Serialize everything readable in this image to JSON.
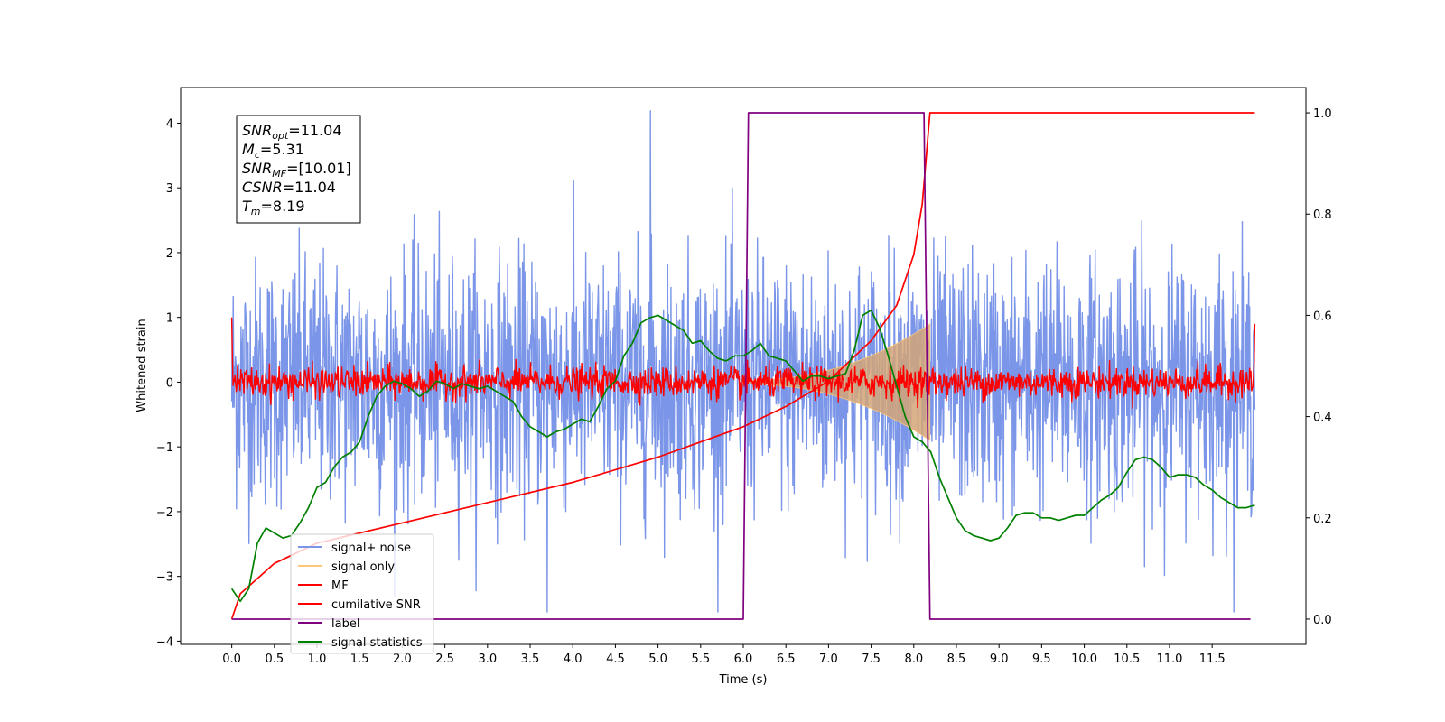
{
  "chart_data": {
    "type": "line",
    "xlabel": "Time (s)",
    "ylabel": "Whitened strain",
    "xlim": [
      -0.6,
      12.6
    ],
    "ylim": [
      -4.05,
      4.55
    ],
    "y2lim": [
      -0.05,
      1.05
    ],
    "x_ticks": [
      "0.0",
      "0.5",
      "1.0",
      "1.5",
      "2.0",
      "2.5",
      "3.0",
      "3.5",
      "4.0",
      "4.5",
      "5.0",
      "5.5",
      "6.0",
      "6.5",
      "7.0",
      "7.5",
      "8.0",
      "8.5",
      "9.0",
      "9.5",
      "10.0",
      "10.5",
      "11.0",
      "11.5"
    ],
    "y_ticks": [
      "4",
      "3",
      "2",
      "1",
      "0",
      "−1",
      "−2",
      "−3",
      "−4"
    ],
    "y2_ticks": [
      "1.0",
      "0.8",
      "0.6",
      "0.4",
      "0.2",
      "0.0"
    ],
    "annotation": [
      {
        "name": "SNR",
        "sub": "opt",
        "value": "=11.04"
      },
      {
        "name": "M",
        "sub": "c",
        "value": "=5.31"
      },
      {
        "name": "SNR",
        "sub": "MF",
        "value": "=[10.01]"
      },
      {
        "name": "CSNR",
        "sub": "",
        "value": "=11.04"
      },
      {
        "name": "T",
        "sub": "m",
        "value": "=8.19"
      }
    ],
    "legend": [
      {
        "label": "signal+ noise",
        "color": "#7b96e8"
      },
      {
        "label": "signal only",
        "color": "#ffc77a"
      },
      {
        "label": "MF",
        "color": "#ff0000"
      },
      {
        "label": "cumilative SNR",
        "color": "#ff0000"
      },
      {
        "label": "label",
        "color": "#800080"
      },
      {
        "label": "signal statistics",
        "color": "#008000"
      }
    ],
    "series": [
      {
        "name": "signal+ noise",
        "axis": "left",
        "color": "#7b96e8",
        "x_range": [
          0.0,
          12.0
        ],
        "std": 0.95,
        "peak_max": 4.19,
        "peak_min": -3.62
      },
      {
        "name": "signal only",
        "axis": "left",
        "color": "#d4a577",
        "x_range": [
          6.0,
          8.19
        ],
        "envelope_start": 0.03,
        "envelope_end": 0.9
      },
      {
        "name": "MF",
        "axis": "left",
        "color": "#ff0000",
        "x_range": [
          0.0,
          12.0
        ],
        "amplitude": 0.12,
        "edge_peak": 1.0
      },
      {
        "name": "cumilative SNR",
        "axis": "right",
        "color": "#ff0000",
        "points": [
          [
            0.0,
            0.0
          ],
          [
            0.1,
            0.05
          ],
          [
            0.5,
            0.11
          ],
          [
            1.0,
            0.15
          ],
          [
            2.0,
            0.19
          ],
          [
            3.0,
            0.23
          ],
          [
            4.0,
            0.27
          ],
          [
            5.0,
            0.32
          ],
          [
            6.0,
            0.38
          ],
          [
            6.5,
            0.42
          ],
          [
            7.0,
            0.47
          ],
          [
            7.5,
            0.55
          ],
          [
            7.8,
            0.62
          ],
          [
            8.0,
            0.72
          ],
          [
            8.1,
            0.82
          ],
          [
            8.19,
            1.0
          ],
          [
            12.0,
            1.0
          ]
        ]
      },
      {
        "name": "label",
        "axis": "right",
        "color": "#800080",
        "points": [
          [
            0.0,
            0.0
          ],
          [
            6.0,
            0.0
          ],
          [
            6.06,
            1.0
          ],
          [
            8.12,
            1.0
          ],
          [
            8.19,
            0.0
          ],
          [
            11.95,
            0.0
          ]
        ]
      },
      {
        "name": "signal statistics",
        "axis": "right",
        "color": "#008000",
        "points": [
          [
            0.0,
            0.06
          ],
          [
            0.1,
            0.035
          ],
          [
            0.2,
            0.06
          ],
          [
            0.3,
            0.15
          ],
          [
            0.4,
            0.18
          ],
          [
            0.5,
            0.17
          ],
          [
            0.6,
            0.16
          ],
          [
            0.7,
            0.165
          ],
          [
            0.8,
            0.19
          ],
          [
            0.9,
            0.22
          ],
          [
            1.0,
            0.26
          ],
          [
            1.1,
            0.27
          ],
          [
            1.2,
            0.3
          ],
          [
            1.3,
            0.32
          ],
          [
            1.4,
            0.33
          ],
          [
            1.5,
            0.35
          ],
          [
            1.6,
            0.4
          ],
          [
            1.7,
            0.44
          ],
          [
            1.8,
            0.46
          ],
          [
            1.9,
            0.47
          ],
          [
            2.0,
            0.465
          ],
          [
            2.1,
            0.455
          ],
          [
            2.2,
            0.44
          ],
          [
            2.3,
            0.45
          ],
          [
            2.4,
            0.47
          ],
          [
            2.5,
            0.465
          ],
          [
            2.6,
            0.455
          ],
          [
            2.7,
            0.465
          ],
          [
            2.8,
            0.46
          ],
          [
            2.9,
            0.455
          ],
          [
            3.0,
            0.46
          ],
          [
            3.1,
            0.45
          ],
          [
            3.2,
            0.44
          ],
          [
            3.3,
            0.43
          ],
          [
            3.4,
            0.4
          ],
          [
            3.5,
            0.38
          ],
          [
            3.6,
            0.37
          ],
          [
            3.7,
            0.36
          ],
          [
            3.8,
            0.37
          ],
          [
            3.9,
            0.375
          ],
          [
            4.0,
            0.385
          ],
          [
            4.1,
            0.395
          ],
          [
            4.2,
            0.39
          ],
          [
            4.3,
            0.42
          ],
          [
            4.4,
            0.455
          ],
          [
            4.5,
            0.47
          ],
          [
            4.6,
            0.52
          ],
          [
            4.7,
            0.545
          ],
          [
            4.8,
            0.585
          ],
          [
            4.9,
            0.595
          ],
          [
            5.0,
            0.6
          ],
          [
            5.1,
            0.59
          ],
          [
            5.2,
            0.58
          ],
          [
            5.3,
            0.57
          ],
          [
            5.4,
            0.545
          ],
          [
            5.5,
            0.55
          ],
          [
            5.6,
            0.53
          ],
          [
            5.7,
            0.515
          ],
          [
            5.8,
            0.51
          ],
          [
            5.9,
            0.52
          ],
          [
            6.0,
            0.52
          ],
          [
            6.1,
            0.53
          ],
          [
            6.2,
            0.545
          ],
          [
            6.3,
            0.52
          ],
          [
            6.4,
            0.515
          ],
          [
            6.5,
            0.51
          ],
          [
            6.6,
            0.49
          ],
          [
            6.7,
            0.47
          ],
          [
            6.8,
            0.48
          ],
          [
            6.9,
            0.48
          ],
          [
            7.0,
            0.475
          ],
          [
            7.1,
            0.48
          ],
          [
            7.2,
            0.485
          ],
          [
            7.3,
            0.53
          ],
          [
            7.4,
            0.6
          ],
          [
            7.5,
            0.61
          ],
          [
            7.6,
            0.575
          ],
          [
            7.7,
            0.52
          ],
          [
            7.8,
            0.46
          ],
          [
            7.9,
            0.4
          ],
          [
            8.0,
            0.36
          ],
          [
            8.1,
            0.35
          ],
          [
            8.2,
            0.33
          ],
          [
            8.3,
            0.28
          ],
          [
            8.4,
            0.24
          ],
          [
            8.5,
            0.2
          ],
          [
            8.6,
            0.175
          ],
          [
            8.7,
            0.165
          ],
          [
            8.8,
            0.16
          ],
          [
            8.9,
            0.155
          ],
          [
            9.0,
            0.16
          ],
          [
            9.1,
            0.18
          ],
          [
            9.2,
            0.205
          ],
          [
            9.3,
            0.21
          ],
          [
            9.4,
            0.21
          ],
          [
            9.5,
            0.2
          ],
          [
            9.6,
            0.2
          ],
          [
            9.7,
            0.195
          ],
          [
            9.8,
            0.2
          ],
          [
            9.9,
            0.205
          ],
          [
            10.0,
            0.205
          ],
          [
            10.1,
            0.22
          ],
          [
            10.2,
            0.235
          ],
          [
            10.3,
            0.245
          ],
          [
            10.4,
            0.26
          ],
          [
            10.5,
            0.29
          ],
          [
            10.6,
            0.315
          ],
          [
            10.7,
            0.32
          ],
          [
            10.8,
            0.315
          ],
          [
            10.9,
            0.3
          ],
          [
            11.0,
            0.28
          ],
          [
            11.1,
            0.285
          ],
          [
            11.2,
            0.285
          ],
          [
            11.3,
            0.28
          ],
          [
            11.4,
            0.265
          ],
          [
            11.5,
            0.255
          ],
          [
            11.6,
            0.24
          ],
          [
            11.7,
            0.23
          ],
          [
            11.8,
            0.22
          ],
          [
            11.9,
            0.22
          ],
          [
            12.0,
            0.225
          ]
        ]
      }
    ]
  }
}
